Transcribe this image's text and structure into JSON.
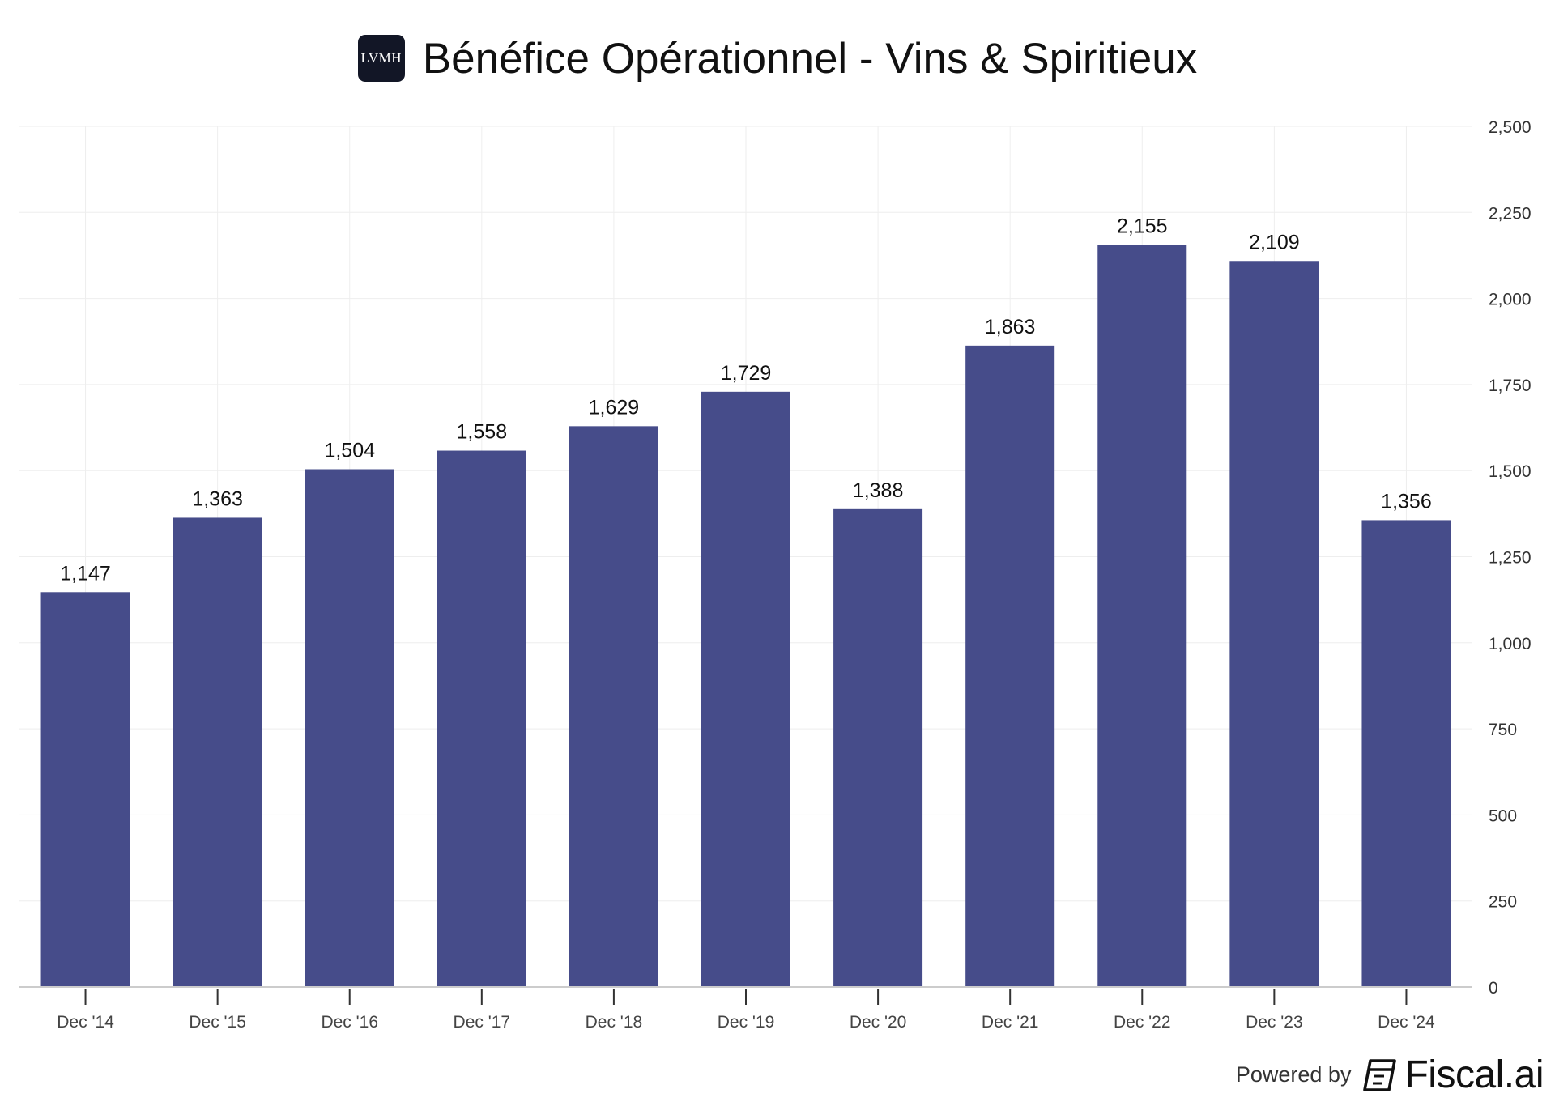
{
  "header": {
    "logo_text": "LVMH",
    "title": "Bénéfice Opérationnel - Vins & Spiritieux"
  },
  "footer": {
    "powered_by": "Powered by",
    "brand": "Fiscal.ai"
  },
  "colors": {
    "bar": "#464C8A",
    "grid": "#EEEEEE",
    "axis": "#CCCCCC"
  },
  "chart_data": {
    "type": "bar",
    "title": "Bénéfice Opérationnel - Vins & Spiritieux",
    "categories": [
      "Dec '14",
      "Dec '15",
      "Dec '16",
      "Dec '17",
      "Dec '18",
      "Dec '19",
      "Dec '20",
      "Dec '21",
      "Dec '22",
      "Dec '23",
      "Dec '24"
    ],
    "values": [
      1147,
      1363,
      1504,
      1558,
      1629,
      1729,
      1388,
      1863,
      2155,
      2109,
      1356
    ],
    "value_labels": [
      "1,147",
      "1,363",
      "1,504",
      "1,558",
      "1,629",
      "1,729",
      "1,388",
      "1,863",
      "2,155",
      "2,109",
      "1,356"
    ],
    "y_ticks": [
      0,
      250,
      500,
      750,
      1000,
      1250,
      1500,
      1750,
      2000,
      2250,
      2500
    ],
    "y_tick_labels": [
      "0",
      "250",
      "500",
      "750",
      "1,000",
      "1,250",
      "1,500",
      "1,750",
      "2,000",
      "2,250",
      "2,500"
    ],
    "ylim": [
      0,
      2500
    ],
    "y_axis_position": "right",
    "grid": true,
    "xlabel": "",
    "ylabel": ""
  }
}
